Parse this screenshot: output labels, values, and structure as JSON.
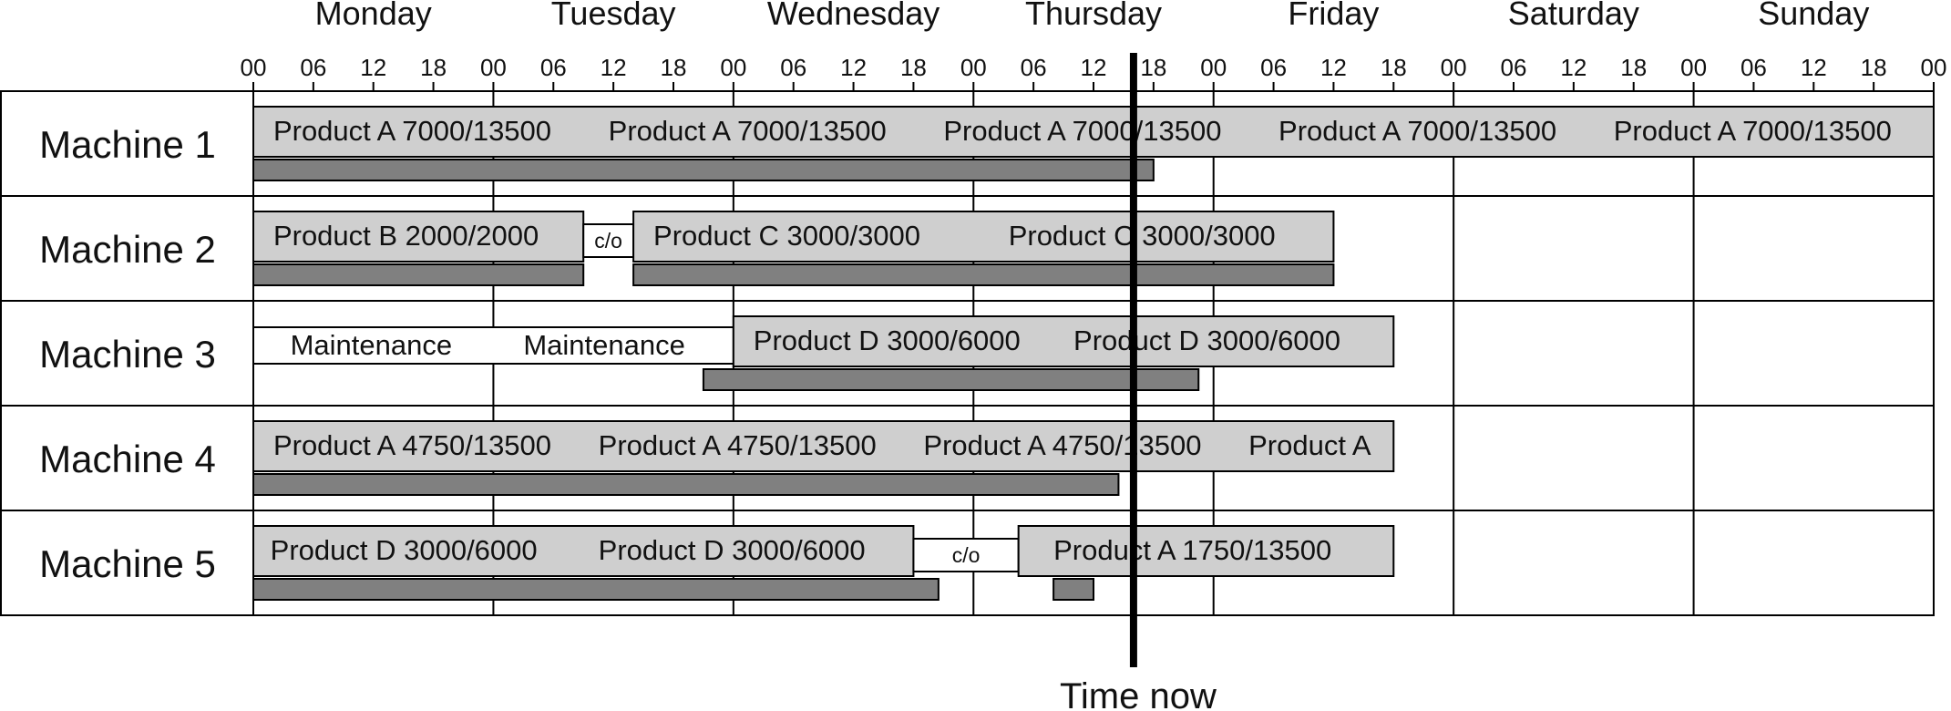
{
  "chart_data": {
    "type": "gantt",
    "days": [
      "Monday",
      "Tuesday",
      "Wednesday",
      "Thursday",
      "Friday",
      "Saturday",
      "Sunday"
    ],
    "tick_labels": [
      "00",
      "06",
      "12",
      "18"
    ],
    "final_tick_label": "00",
    "machines": [
      "Machine 1",
      "Machine 2",
      "Machine 3",
      "Machine 4",
      "Machine 5"
    ],
    "time_now_label": "Time now",
    "time_now_hour": 88,
    "schedule": [
      {
        "machine": "Machine 1",
        "bars": [
          {
            "kind": "product",
            "start": 0,
            "end": 168,
            "progress_end": 90,
            "labels": [
              {
                "at": 2,
                "text": "Product A  7000/13500"
              },
              {
                "at": 35.5,
                "text": "Product A  7000/13500"
              },
              {
                "at": 69,
                "text": "Product A  7000/13500"
              },
              {
                "at": 102.5,
                "text": "Product A  7000/13500"
              },
              {
                "at": 136,
                "text": "Product A  7000/13500"
              }
            ]
          }
        ]
      },
      {
        "machine": "Machine 2",
        "bars": [
          {
            "kind": "product",
            "start": 0,
            "end": 33,
            "progress_end": 33,
            "labels": [
              {
                "at": 2,
                "text": "Product B  2000/2000"
              }
            ]
          },
          {
            "kind": "changeover",
            "start": 33,
            "end": 38,
            "text": "c/o"
          },
          {
            "kind": "product",
            "start": 38,
            "end": 108,
            "progress_end": 108,
            "labels": [
              {
                "at": 40,
                "text": "Product C    3000/3000"
              },
              {
                "at": 75.5,
                "text": "Product C    3000/3000"
              }
            ]
          }
        ]
      },
      {
        "machine": "Machine 3",
        "bars": [
          {
            "kind": "maintenance",
            "start": 0,
            "end": 48,
            "labels": [
              {
                "at": 3.7,
                "text": "Maintenance"
              },
              {
                "at": 27,
                "text": "Maintenance"
              }
            ]
          },
          {
            "kind": "product",
            "start": 48,
            "end": 114,
            "progress_start": 45,
            "progress_end": 94.5,
            "labels": [
              {
                "at": 50,
                "text": "Product D   3000/6000"
              },
              {
                "at": 82,
                "text": "Product D   3000/6000"
              }
            ]
          }
        ]
      },
      {
        "machine": "Machine 4",
        "bars": [
          {
            "kind": "product",
            "start": 0,
            "end": 114,
            "progress_end": 86.5,
            "labels": [
              {
                "at": 2,
                "text": "Product A  4750/13500"
              },
              {
                "at": 34.5,
                "text": "Product A  4750/13500"
              },
              {
                "at": 67,
                "text": "Product A  4750/13500"
              },
              {
                "at": 99.5,
                "text": "Product A"
              }
            ]
          }
        ]
      },
      {
        "machine": "Machine 5",
        "bars": [
          {
            "kind": "product",
            "start": 0,
            "end": 66,
            "progress_end": 68.5,
            "labels": [
              {
                "at": 1.7,
                "text": "Product D   3000/6000"
              },
              {
                "at": 34.5,
                "text": "Product D   3000/6000"
              }
            ]
          },
          {
            "kind": "changeover",
            "start": 66,
            "end": 76.5,
            "text": "c/o"
          },
          {
            "kind": "product",
            "start": 76.5,
            "end": 114,
            "progress_start": 80,
            "progress_end": 84,
            "labels": [
              {
                "at": 80,
                "text": "Product A   1750/13500"
              }
            ]
          }
        ]
      }
    ],
    "colors": {
      "bar_fill": "#cfcfcf",
      "progress_fill": "#808080",
      "outline": "#000000",
      "background": "#ffffff"
    }
  }
}
